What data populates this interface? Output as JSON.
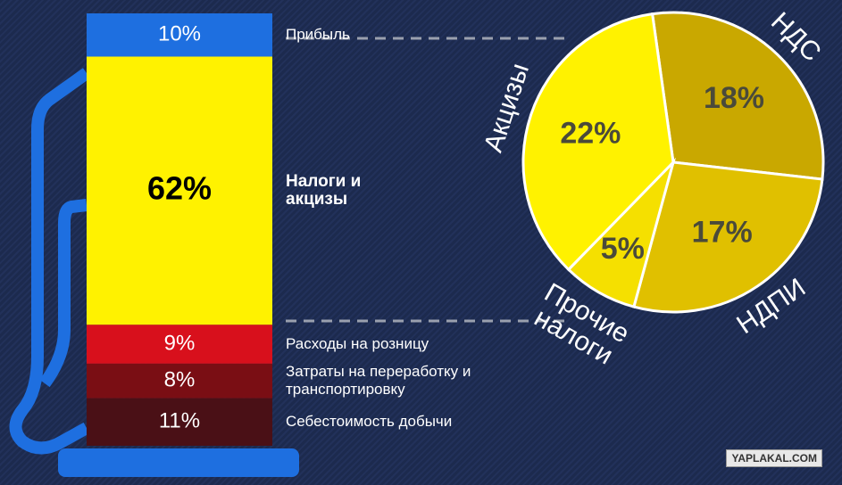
{
  "chart_data": [
    {
      "type": "stacked-bar",
      "ylim": [
        0,
        100
      ],
      "series": [
        {
          "name": "Себестоимость добычи",
          "color": "#4a1016",
          "values": [
            11
          ],
          "value_labels": [
            "11%"
          ]
        },
        {
          "name": "Затраты на переработку и транспортировку",
          "color": "#7a0e14",
          "values": [
            8
          ],
          "value_labels": [
            "8%"
          ]
        },
        {
          "name": "Расходы на розницу",
          "color": "#d8101c",
          "values": [
            9
          ],
          "value_labels": [
            "9%"
          ]
        },
        {
          "name": "Налоги и акцизы",
          "color": "#fff200",
          "values": [
            62
          ],
          "value_labels": [
            "62%"
          ]
        },
        {
          "name": "Прибыль",
          "color": "#1e6fe0",
          "values": [
            10
          ],
          "value_labels": [
            "10%"
          ]
        }
      ]
    },
    {
      "type": "pie",
      "categories": [
        "НДС",
        "НДПИ",
        "Прочие налоги",
        "Акцизы"
      ],
      "values": [
        18,
        17,
        5,
        22
      ],
      "value_labels": [
        "18%",
        "17%",
        "5%",
        "22%"
      ],
      "colors": [
        "#c9a800",
        "#e0c000",
        "#f5e000",
        "#fff200"
      ]
    }
  ],
  "watermark": "YAPLAKAL.COM"
}
